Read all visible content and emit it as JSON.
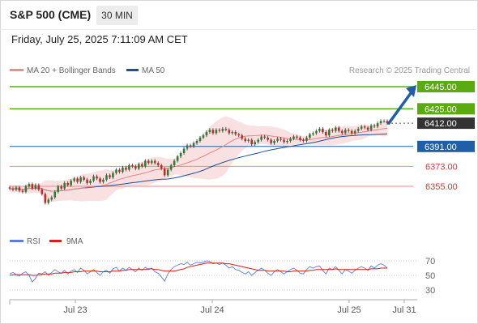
{
  "header": {
    "title": "S&P 500 (CME)",
    "timeframe": "30 MIN",
    "timestamp": "Friday, July 25, 2025 7:11:09 AM CET"
  },
  "legend": {
    "ma20": "MA 20 + Bollinger Bands",
    "ma50": "MA 50",
    "credit": "Research © 2025 Trading Central"
  },
  "rsi_legend": {
    "rsi": "RSI",
    "ma": "9MA"
  },
  "colors": {
    "green": "#5aab10",
    "blue": "#1f5fa8",
    "red": "#d43a3a",
    "dark": "#333333",
    "band": "#f6c9c9"
  },
  "chart_data": [
    {
      "type": "candlestick",
      "title": "",
      "x_labels": [
        "Jul 23",
        "Jul 24",
        "Jul 25",
        "Jul 31"
      ],
      "price_range": [
        6345,
        6452
      ],
      "levels": [
        {
          "value": 6445.0,
          "label": "6445.00",
          "style": "green-fill"
        },
        {
          "value": 6425.0,
          "label": "6425.00",
          "style": "green-fill"
        },
        {
          "value": 6412.0,
          "label": "6412.00",
          "style": "dark-fill"
        },
        {
          "value": 6391.0,
          "label": "6391.00",
          "style": "blue-fill"
        },
        {
          "value": 6373.0,
          "label": "6373.00",
          "style": "red-text"
        },
        {
          "value": 6355.0,
          "label": "6355.00",
          "style": "red-text"
        }
      ],
      "projection": {
        "from": 6412,
        "to": 6445,
        "color": "#1f5fa8"
      },
      "close_series": [
        6353,
        6352,
        6354,
        6351,
        6350,
        6355,
        6357,
        6353,
        6356,
        6352,
        6348,
        6340,
        6343,
        6345,
        6350,
        6355,
        6353,
        6358,
        6356,
        6360,
        6362,
        6359,
        6363,
        6361,
        6358,
        6360,
        6364,
        6362,
        6359,
        6361,
        6365,
        6363,
        6367,
        6370,
        6368,
        6372,
        6370,
        6374,
        6373,
        6371,
        6375,
        6373,
        6378,
        6376,
        6378,
        6376,
        6374,
        6371,
        6365,
        6370,
        6374,
        6378,
        6382,
        6385,
        6389,
        6392,
        6391,
        6394,
        6396,
        6399,
        6401,
        6404,
        6406,
        6403,
        6406,
        6405,
        6407,
        6406,
        6403,
        6404,
        6402,
        6401,
        6398,
        6396,
        6397,
        6393,
        6395,
        6397,
        6400,
        6399,
        6397,
        6394,
        6396,
        6398,
        6397,
        6395,
        6396,
        6398,
        6400,
        6399,
        6397,
        6396,
        6399,
        6402,
        6403,
        6405,
        6407,
        6404,
        6401,
        6406,
        6405,
        6408,
        6405,
        6403,
        6406,
        6405,
        6403,
        6405,
        6407,
        6409,
        6408,
        6406,
        6410,
        6409,
        6412,
        6414,
        6414,
        6412
      ]
    },
    {
      "type": "line",
      "title": "",
      "series": [
        {
          "name": "RSI",
          "color": "#5b7fd6"
        },
        {
          "name": "9MA",
          "color": "#d42020"
        }
      ],
      "y_ticks": [
        70,
        50,
        30
      ],
      "ylim": [
        20,
        80
      ],
      "rsi_values": [
        52,
        54,
        51,
        49,
        53,
        55,
        50,
        41,
        46,
        53,
        52,
        55,
        50,
        54,
        58,
        55,
        53,
        57,
        52,
        56,
        58,
        54,
        60,
        57,
        52,
        55,
        58,
        54,
        50,
        55,
        57,
        53,
        59,
        61,
        56,
        60,
        57,
        61,
        58,
        55,
        60,
        57,
        61,
        58,
        60,
        55,
        53,
        48,
        42,
        52,
        58,
        62,
        64,
        66,
        65,
        68,
        64,
        66,
        68,
        67,
        68,
        70,
        69,
        66,
        67,
        65,
        67,
        64,
        60,
        62,
        58,
        57,
        54,
        52,
        55,
        50,
        54,
        57,
        60,
        57,
        53,
        50,
        55,
        58,
        55,
        52,
        55,
        58,
        60,
        57,
        53,
        52,
        58,
        62,
        60,
        62,
        63,
        57,
        52,
        60,
        58,
        62,
        57,
        52,
        58,
        56,
        53,
        57,
        60,
        62,
        60,
        57,
        63,
        60,
        64,
        66,
        64,
        60
      ],
      "ma_values": [
        50,
        51,
        51,
        51,
        51,
        51,
        51,
        50,
        50,
        51,
        51,
        52,
        52,
        52,
        53,
        53,
        53,
        54,
        54,
        54,
        55,
        55,
        55,
        56,
        56,
        56,
        56,
        56,
        55,
        55,
        55,
        55,
        56,
        56,
        56,
        57,
        57,
        58,
        58,
        58,
        58,
        58,
        58,
        59,
        59,
        58,
        58,
        57,
        56,
        56,
        56,
        56,
        57,
        58,
        59,
        61,
        62,
        63,
        64,
        65,
        66,
        67,
        67,
        67,
        67,
        67,
        67,
        66,
        66,
        65,
        64,
        63,
        62,
        61,
        60,
        59,
        58,
        57,
        57,
        57,
        56,
        56,
        56,
        56,
        56,
        56,
        55,
        55,
        56,
        56,
        56,
        56,
        56,
        57,
        57,
        58,
        58,
        58,
        58,
        58,
        58,
        59,
        58,
        58,
        58,
        58,
        58,
        58,
        58,
        58,
        58,
        58,
        59,
        59,
        59,
        60,
        60,
        60
      ]
    }
  ]
}
